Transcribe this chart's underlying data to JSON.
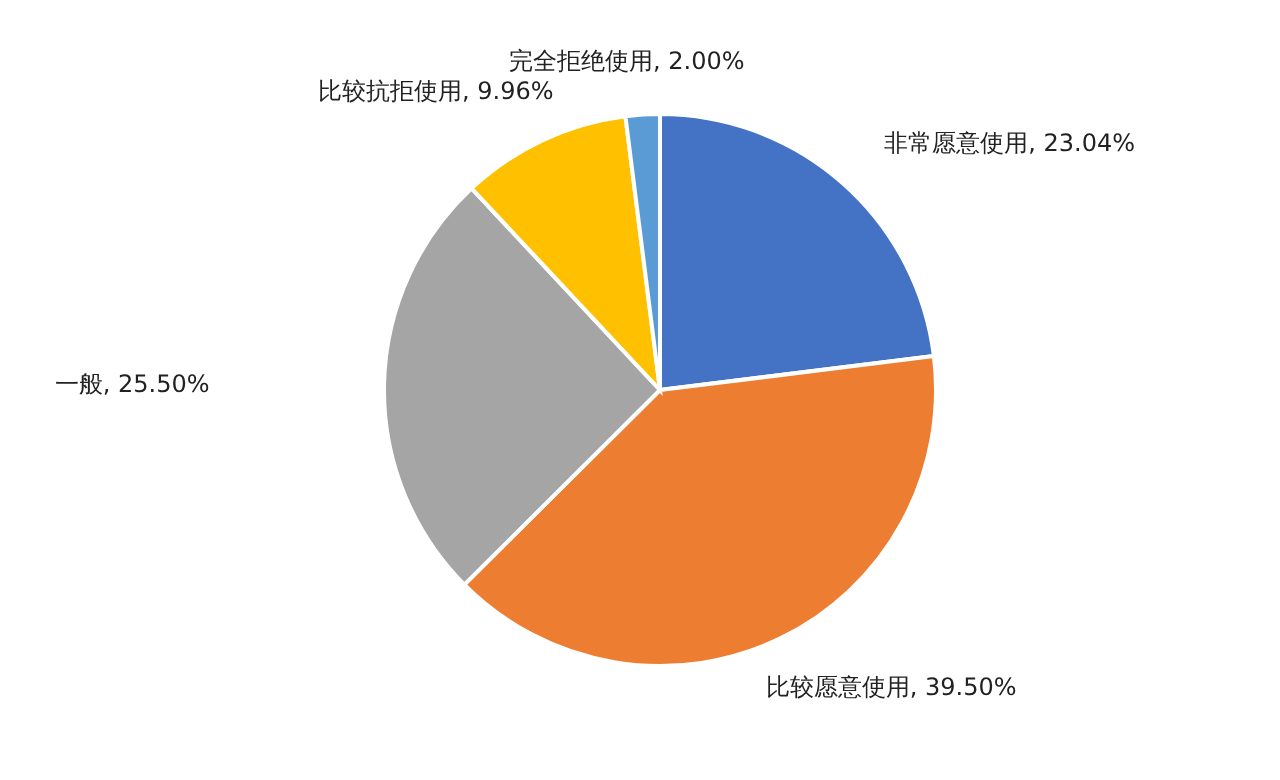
{
  "chart_data": {
    "type": "pie",
    "categories": [
      "非常愿意使用",
      "比较愿意使用",
      "一般",
      "比较抗拒使用",
      "完全拒绝使用"
    ],
    "values": [
      23.04,
      39.5,
      25.5,
      9.96,
      2.0
    ],
    "value_labels": [
      "23.04%",
      "39.50%",
      "25.50%",
      "9.96%",
      "2.00%"
    ],
    "colors": [
      "#4472c4",
      "#ed7d31",
      "#a5a5a5",
      "#ffc000",
      "#5b9bd5"
    ]
  }
}
